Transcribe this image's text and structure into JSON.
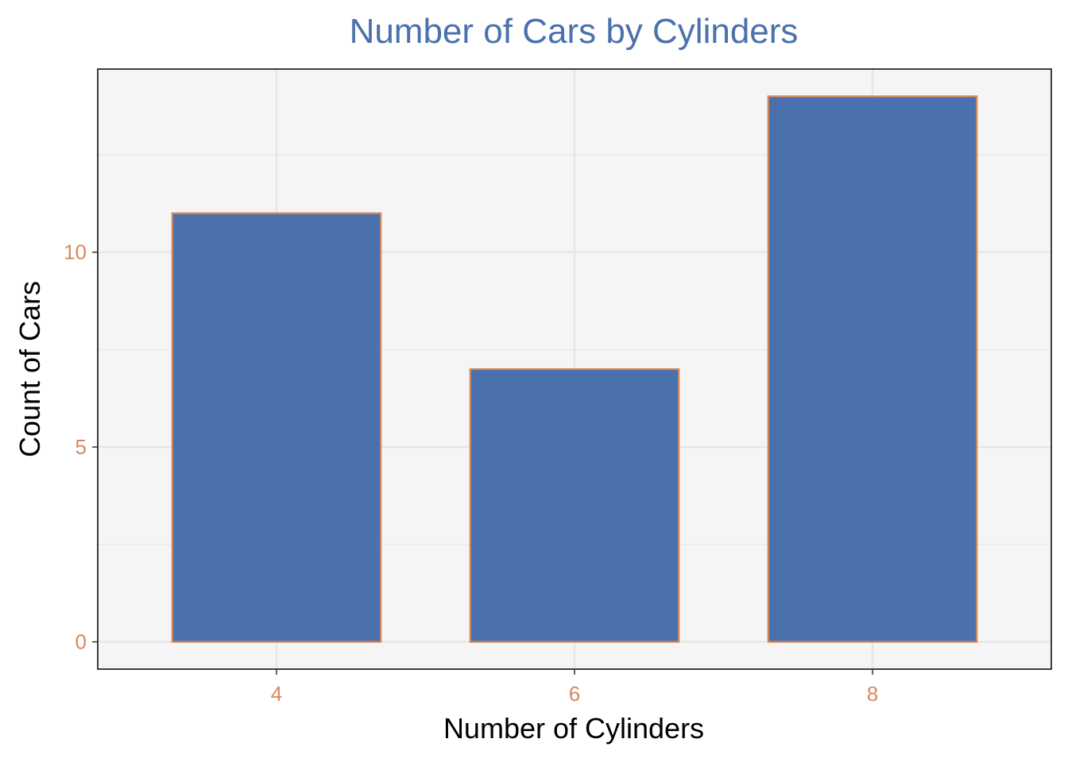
{
  "chart_data": {
    "type": "bar",
    "title": "Number of Cars by Cylinders",
    "xlabel": "Number of Cylinders",
    "ylabel": "Count of Cars",
    "categories": [
      "4",
      "6",
      "8"
    ],
    "values": [
      11,
      7,
      14
    ],
    "ylim": [
      -0.7,
      14.7
    ],
    "y_ticks": [
      0,
      5,
      10
    ],
    "y_tick_labels": [
      "0",
      "5",
      "10"
    ],
    "y_minor_gridlines": [
      2.5,
      7.5,
      12.5
    ],
    "grid": true,
    "legend": "none",
    "colors": {
      "title": "#4a71ad",
      "bar_fill": "#4a71ad",
      "bar_outline": "#d9885a",
      "tick_label": "#d9885a",
      "panel_background": "#f5f5f5",
      "grid": "#e6e6e6"
    }
  }
}
